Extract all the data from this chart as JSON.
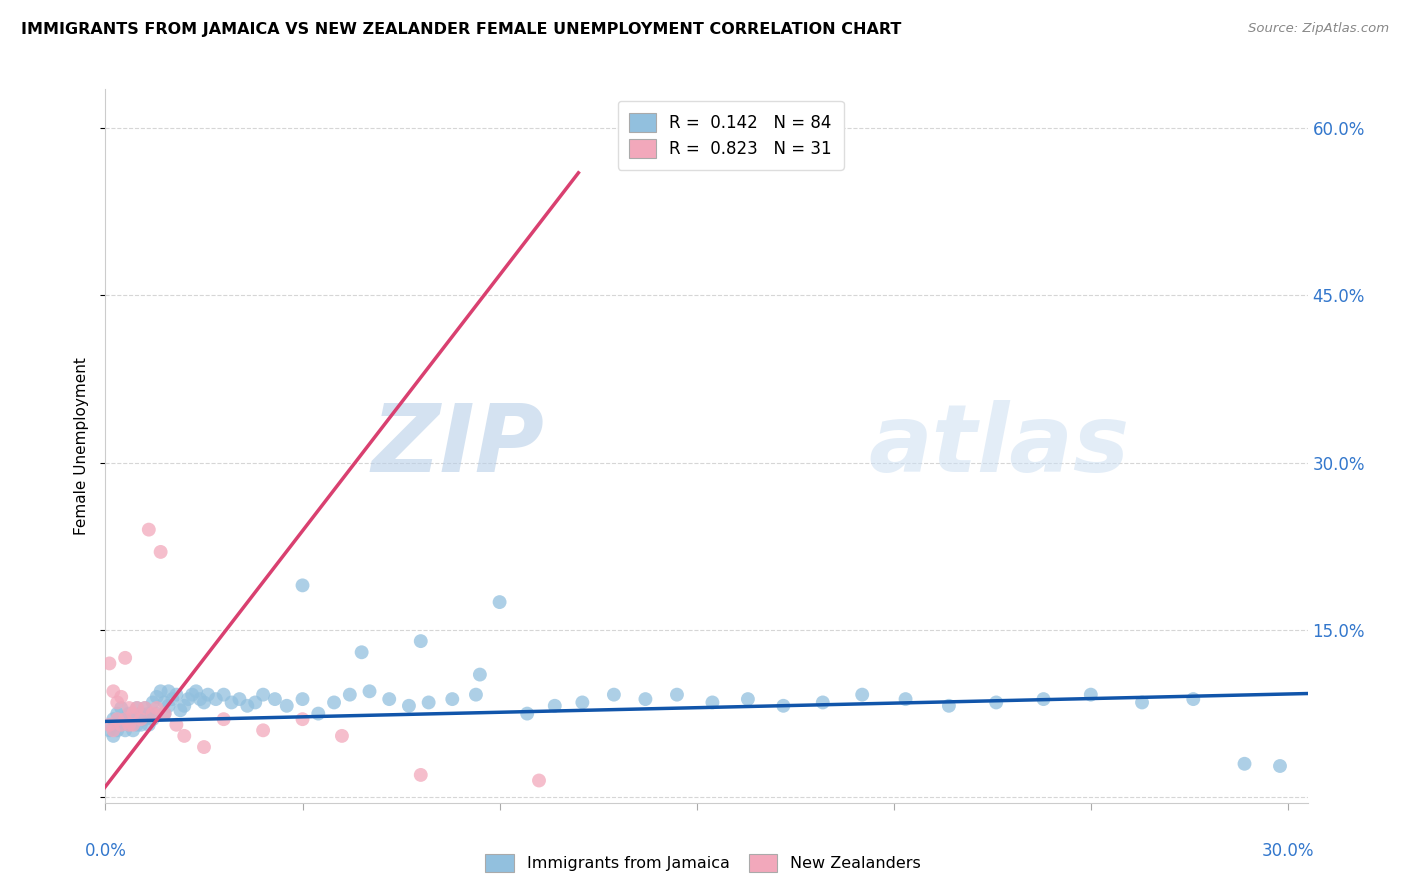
{
  "title": "IMMIGRANTS FROM JAMAICA VS NEW ZEALANDER FEMALE UNEMPLOYMENT CORRELATION CHART",
  "source": "Source: ZipAtlas.com",
  "ylabel_label": "Female Unemployment",
  "xlim": [
    0.0,
    0.305
  ],
  "ylim": [
    -0.005,
    0.635
  ],
  "x_ticks": [
    0.0,
    0.05,
    0.1,
    0.15,
    0.2,
    0.25,
    0.3
  ],
  "x_tick_labels_show": [
    "0.0%",
    "30.0%"
  ],
  "x_tick_positions_show": [
    0.0,
    0.3
  ],
  "y_ticks": [
    0.0,
    0.15,
    0.3,
    0.45,
    0.6
  ],
  "y_tick_labels": [
    "",
    "15.0%",
    "30.0%",
    "45.0%",
    "60.0%"
  ],
  "r1": "0.142",
  "n1": "84",
  "r2": "0.823",
  "n2": "31",
  "color_blue": "#92c0de",
  "color_pink": "#f2a8bb",
  "line_blue": "#1155aa",
  "line_pink": "#d94070",
  "blue_x": [
    0.001,
    0.002,
    0.002,
    0.003,
    0.003,
    0.004,
    0.004,
    0.005,
    0.005,
    0.006,
    0.006,
    0.007,
    0.007,
    0.008,
    0.008,
    0.009,
    0.009,
    0.01,
    0.01,
    0.011,
    0.011,
    0.012,
    0.012,
    0.013,
    0.013,
    0.014,
    0.015,
    0.015,
    0.016,
    0.016,
    0.017,
    0.018,
    0.019,
    0.02,
    0.021,
    0.022,
    0.023,
    0.024,
    0.025,
    0.026,
    0.028,
    0.03,
    0.032,
    0.034,
    0.036,
    0.038,
    0.04,
    0.043,
    0.046,
    0.05,
    0.054,
    0.058,
    0.062,
    0.067,
    0.072,
    0.077,
    0.082,
    0.088,
    0.094,
    0.1,
    0.107,
    0.114,
    0.121,
    0.129,
    0.137,
    0.145,
    0.154,
    0.163,
    0.172,
    0.182,
    0.192,
    0.203,
    0.214,
    0.226,
    0.238,
    0.25,
    0.263,
    0.276,
    0.289,
    0.298,
    0.05,
    0.065,
    0.08,
    0.095
  ],
  "blue_y": [
    0.06,
    0.055,
    0.07,
    0.06,
    0.075,
    0.065,
    0.08,
    0.07,
    0.06,
    0.075,
    0.065,
    0.07,
    0.06,
    0.08,
    0.065,
    0.075,
    0.065,
    0.08,
    0.07,
    0.075,
    0.065,
    0.085,
    0.07,
    0.09,
    0.075,
    0.095,
    0.085,
    0.075,
    0.095,
    0.082,
    0.088,
    0.092,
    0.078,
    0.082,
    0.088,
    0.092,
    0.095,
    0.088,
    0.085,
    0.092,
    0.088,
    0.092,
    0.085,
    0.088,
    0.082,
    0.085,
    0.092,
    0.088,
    0.082,
    0.088,
    0.075,
    0.085,
    0.092,
    0.095,
    0.088,
    0.082,
    0.085,
    0.088,
    0.092,
    0.175,
    0.075,
    0.082,
    0.085,
    0.092,
    0.088,
    0.092,
    0.085,
    0.088,
    0.082,
    0.085,
    0.092,
    0.088,
    0.082,
    0.085,
    0.088,
    0.092,
    0.085,
    0.088,
    0.03,
    0.028,
    0.19,
    0.13,
    0.14,
    0.11
  ],
  "pink_x": [
    0.001,
    0.001,
    0.002,
    0.002,
    0.003,
    0.003,
    0.004,
    0.004,
    0.005,
    0.005,
    0.006,
    0.006,
    0.007,
    0.007,
    0.008,
    0.009,
    0.01,
    0.011,
    0.012,
    0.013,
    0.014,
    0.015,
    0.018,
    0.02,
    0.025,
    0.03,
    0.04,
    0.05,
    0.06,
    0.08,
    0.11
  ],
  "pink_y": [
    0.065,
    0.12,
    0.06,
    0.095,
    0.07,
    0.085,
    0.065,
    0.09,
    0.125,
    0.07,
    0.08,
    0.065,
    0.075,
    0.065,
    0.08,
    0.07,
    0.08,
    0.24,
    0.075,
    0.08,
    0.22,
    0.075,
    0.065,
    0.055,
    0.045,
    0.07,
    0.06,
    0.07,
    0.055,
    0.02,
    0.015
  ],
  "blue_trend_x": [
    0.0,
    0.305
  ],
  "blue_trend_y": [
    0.068,
    0.093
  ],
  "pink_trend_x": [
    -0.001,
    0.12
  ],
  "pink_trend_y": [
    0.005,
    0.56
  ]
}
